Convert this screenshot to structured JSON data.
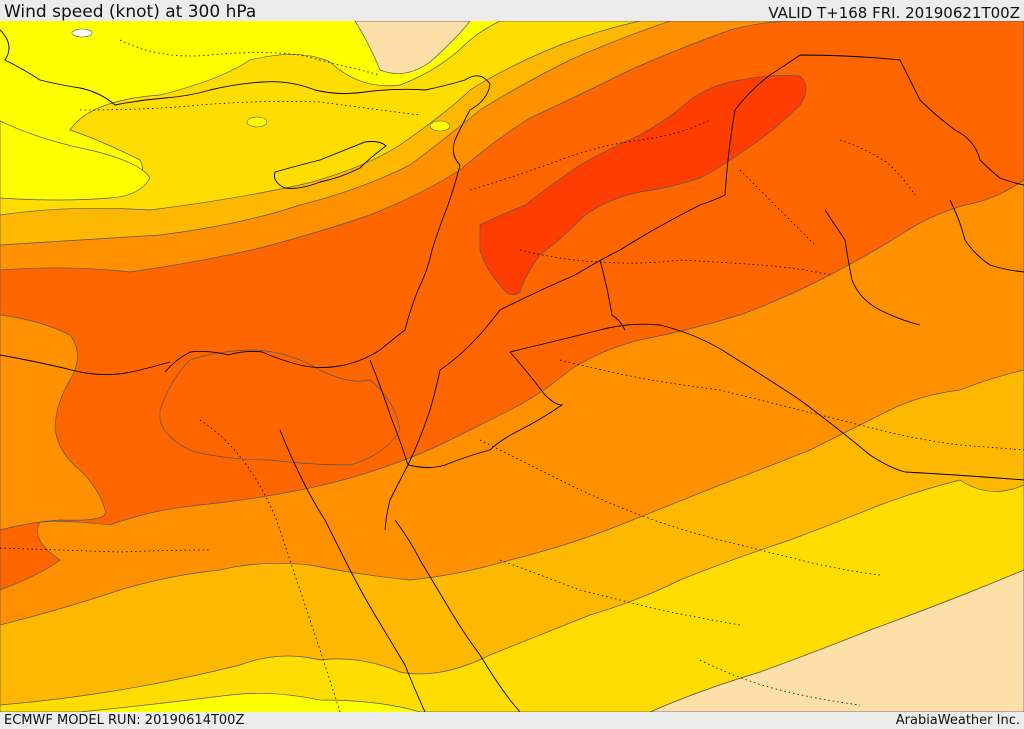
{
  "header": {
    "title": "Wind speed (knot) at 300 hPa",
    "valid": "VALID T+168 FRI. 20190621T00Z"
  },
  "footer": {
    "model_run": "ECMWF MODEL RUN: 20190614T00Z",
    "credit": "ArabiaWeather Inc."
  },
  "map": {
    "field": "wind speed at 300 hPa",
    "units": "knot",
    "region": "Eastern Mediterranean, Levant, Egypt, Arabian Peninsula",
    "shading_colors": [
      "#fde0a8",
      "#ffff00",
      "#ffdd00",
      "#ffb800",
      "#ff9100",
      "#ff6600",
      "#ff3d00"
    ],
    "contour_color": "#555566",
    "border_style": "solid black (national), dotted black (provincial)"
  }
}
